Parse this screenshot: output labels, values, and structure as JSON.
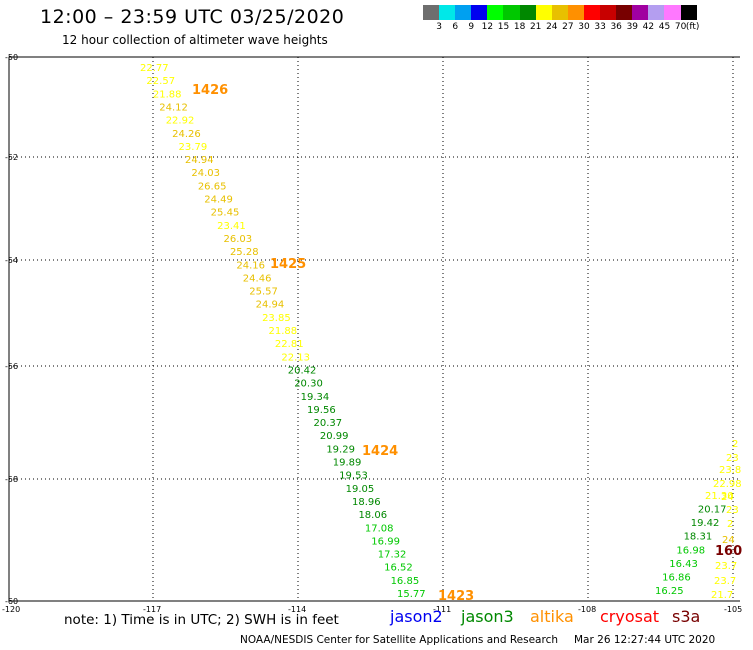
{
  "header": {
    "title": "12:00 – 23:59 UTC 03/25/2020",
    "subtitle": "12 hour collection of altimeter wave heights"
  },
  "legend": {
    "colors": [
      "#6e6e6e",
      "#00e8e8",
      "#00a0f0",
      "#0000f0",
      "#00ff00",
      "#00c800",
      "#008800",
      "#ffff00",
      "#e8c000",
      "#ff9000",
      "#ff0000",
      "#c80000",
      "#780000",
      "#a000a0",
      "#b49ef0",
      "#ff78ff",
      "#000000"
    ],
    "labels": [
      "3",
      "6",
      "9",
      "12",
      "15",
      "18",
      "21",
      "24",
      "27",
      "30",
      "33",
      "36",
      "39",
      "42",
      "45",
      "70",
      "(ft)"
    ]
  },
  "axes": {
    "y_labels": [
      "-50",
      "-52",
      "-54",
      "-56",
      "-58",
      "-60"
    ],
    "x_labels": [
      "-120",
      "-117",
      "-114",
      "-111",
      "-108",
      "-105"
    ]
  },
  "track_main": {
    "points": [
      {
        "v": "22.77",
        "c": "#ffff00"
      },
      {
        "v": "22.57",
        "c": "#ffff00"
      },
      {
        "v": "21.88",
        "c": "#ffff00"
      },
      {
        "v": "24.12",
        "c": "#e8c000"
      },
      {
        "v": "22.92",
        "c": "#ffff00"
      },
      {
        "v": "24.26",
        "c": "#e8c000"
      },
      {
        "v": "23.79",
        "c": "#ffff00"
      },
      {
        "v": "24.94",
        "c": "#e8c000"
      },
      {
        "v": "24.03",
        "c": "#e8c000"
      },
      {
        "v": "26.65",
        "c": "#e8c000"
      },
      {
        "v": "24.49",
        "c": "#e8c000"
      },
      {
        "v": "25.45",
        "c": "#e8c000"
      },
      {
        "v": "23.41",
        "c": "#ffff00"
      },
      {
        "v": "26.03",
        "c": "#e8c000"
      },
      {
        "v": "25.28",
        "c": "#e8c000"
      },
      {
        "v": "24.16",
        "c": "#e8c000"
      },
      {
        "v": "24.46",
        "c": "#e8c000"
      },
      {
        "v": "25.57",
        "c": "#e8c000"
      },
      {
        "v": "24.94",
        "c": "#e8c000"
      },
      {
        "v": "23.85",
        "c": "#ffff00"
      },
      {
        "v": "21.88",
        "c": "#ffff00"
      },
      {
        "v": "22.81",
        "c": "#ffff00"
      },
      {
        "v": "22.13",
        "c": "#ffff00"
      },
      {
        "v": "20.42",
        "c": "#008800"
      },
      {
        "v": "20.30",
        "c": "#008800"
      },
      {
        "v": "19.34",
        "c": "#008800"
      },
      {
        "v": "19.56",
        "c": "#008800"
      },
      {
        "v": "20.37",
        "c": "#008800"
      },
      {
        "v": "20.99",
        "c": "#008800"
      },
      {
        "v": "19.29",
        "c": "#008800"
      },
      {
        "v": "19.89",
        "c": "#008800"
      },
      {
        "v": "19.53",
        "c": "#008800"
      },
      {
        "v": "19.05",
        "c": "#008800"
      },
      {
        "v": "18.96",
        "c": "#008800"
      },
      {
        "v": "18.06",
        "c": "#008800"
      },
      {
        "v": "17.08",
        "c": "#00c800"
      },
      {
        "v": "16.99",
        "c": "#00c800"
      },
      {
        "v": "17.32",
        "c": "#00c800"
      },
      {
        "v": "16.52",
        "c": "#00c800"
      },
      {
        "v": "16.85",
        "c": "#00c800"
      },
      {
        "v": "15.77",
        "c": "#00c800"
      }
    ],
    "pass_labels": [
      {
        "id": "1426",
        "c": "#ff9000"
      },
      {
        "id": "1425",
        "c": "#ff9000"
      },
      {
        "id": "1424",
        "c": "#ff9000"
      },
      {
        "id": "1423",
        "c": "#ff9000"
      }
    ]
  },
  "track_right_left": {
    "points": [
      {
        "v": "21.30",
        "c": "#ffff00"
      },
      {
        "v": "20.17",
        "c": "#008800"
      },
      {
        "v": "19.42",
        "c": "#008800"
      },
      {
        "v": "18.31",
        "c": "#008800"
      },
      {
        "v": "16.98",
        "c": "#00c800"
      },
      {
        "v": "16.43",
        "c": "#00c800"
      },
      {
        "v": "16.86",
        "c": "#00c800"
      },
      {
        "v": "16.25",
        "c": "#00c800"
      }
    ]
  },
  "track_right_edge": {
    "points": [
      {
        "v": "2",
        "c": "#ffff00"
      },
      {
        "v": "23",
        "c": "#ffff00"
      },
      {
        "v": "23.8",
        "c": "#ffff00"
      },
      {
        "v": "22.98",
        "c": "#ffff00"
      },
      {
        "v": "24",
        "c": "#ffff00"
      },
      {
        "v": "23",
        "c": "#ffff00"
      },
      {
        "v": "2",
        "c": "#ffff00"
      },
      {
        "v": "24",
        "c": "#e8c000"
      },
      {
        "v": "23.7",
        "c": "#ffff00"
      },
      {
        "v": "23.7",
        "c": "#ffff00"
      },
      {
        "v": "21.7",
        "c": "#ffff00"
      }
    ],
    "pass_label": {
      "id": "160",
      "c": "#780000"
    }
  },
  "footer": {
    "note": "note:  1) Time is in UTC;  2) SWH is in feet",
    "missions": [
      {
        "name": "jason2",
        "c": "#0000f0"
      },
      {
        "name": "jason3",
        "c": "#008800"
      },
      {
        "name": "altika",
        "c": "#ff9000"
      },
      {
        "name": "cryosat",
        "c": "#ff0000"
      },
      {
        "name": "s3a",
        "c": "#780000"
      }
    ],
    "credit": "NOAA/NESDIS Center for Satellite Applications and Research",
    "timestamp": "Mar 26 12:27:44 UTC 2020"
  }
}
